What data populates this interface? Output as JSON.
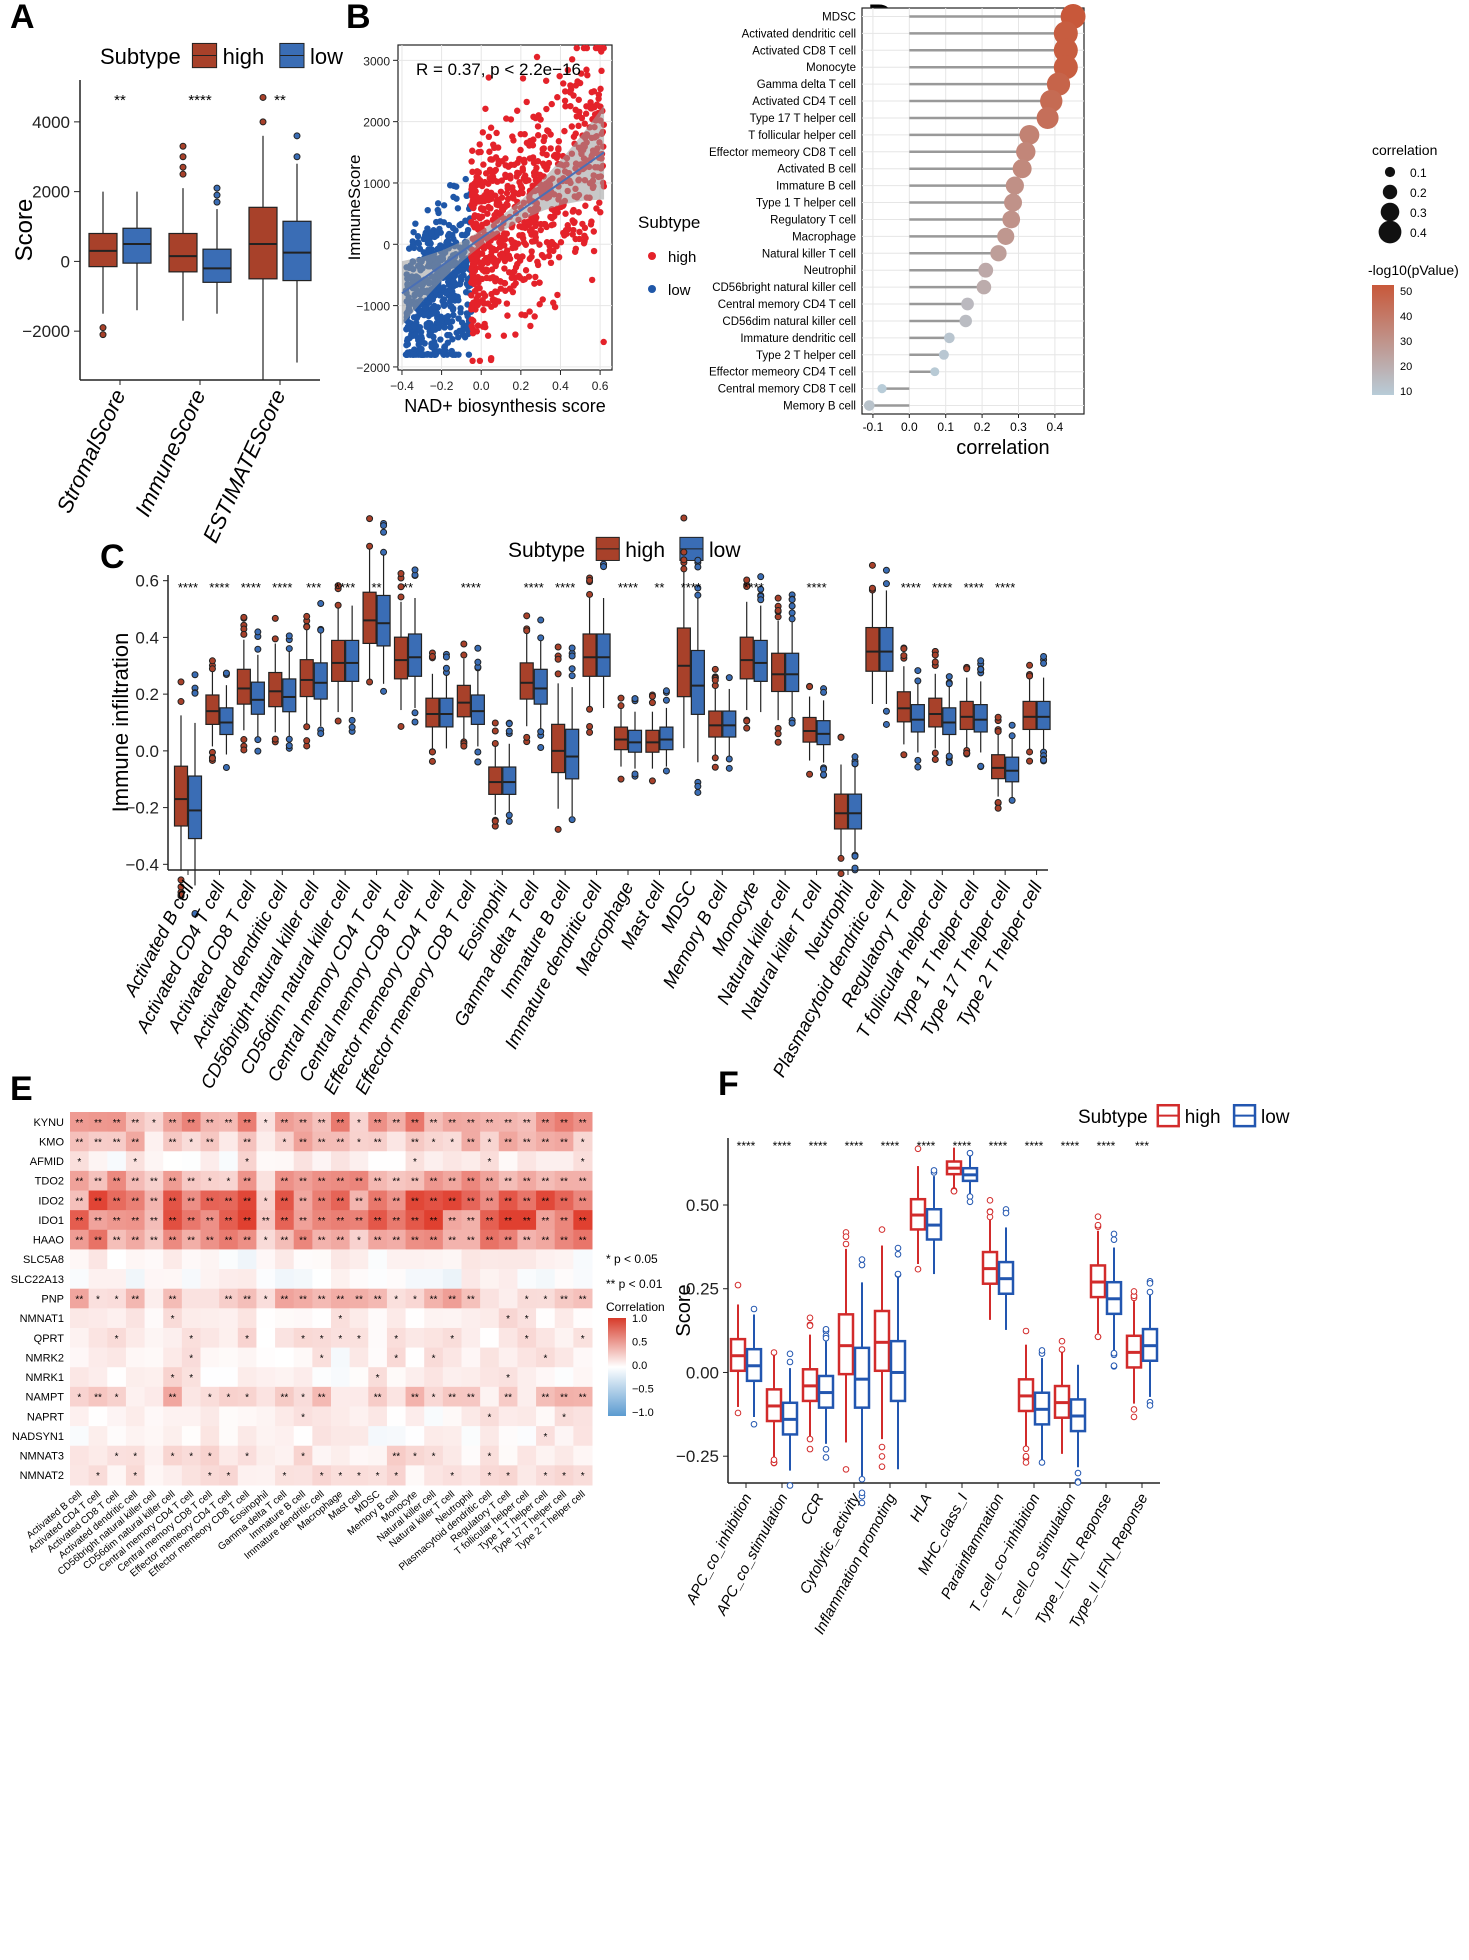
{
  "colors": {
    "high": "#a8412a",
    "low": "#3a6db5",
    "scatter_high": "#e4222a",
    "scatter_low": "#1f57a8",
    "lollipop_stem": "#999999",
    "F_high": "#d22b2b",
    "F_low": "#2256b0",
    "heat_pos": "#e04030",
    "heat_neg": "#4a8ec8"
  },
  "labels": {
    "A": "A",
    "B": "B",
    "C": "C",
    "D": "D",
    "E": "E",
    "F": "F"
  },
  "chart_data": [
    {
      "panel": "A",
      "type": "box",
      "legend_title": "Subtype",
      "legend": [
        "high",
        "low"
      ],
      "ylabel": "Score",
      "ylim": [
        -3400,
        5200
      ],
      "yticks": [
        -2000,
        0,
        2000,
        4000
      ],
      "ytick_labels": [
        "−2000",
        "0",
        "2000",
        "4000"
      ],
      "categories": [
        "StromalScore",
        "ImmuneScore",
        "ESTIMATEScore"
      ],
      "significance": [
        "**",
        "****",
        "**"
      ],
      "series": [
        {
          "name": "high",
          "boxes": [
            {
              "min": -1500,
              "q1": -150,
              "median": 300,
              "q3": 800,
              "max": 2000,
              "outliers": [
                -1900,
                -2100
              ]
            },
            {
              "min": -1700,
              "q1": -300,
              "median": 150,
              "q3": 800,
              "max": 2100,
              "outliers": [
                2500,
                2700,
                3000,
                3300
              ]
            },
            {
              "min": -3400,
              "q1": -500,
              "median": 500,
              "q3": 1550,
              "max": 3600,
              "outliers": [
                4000,
                4700
              ]
            }
          ]
        },
        {
          "name": "low",
          "boxes": [
            {
              "min": -1400,
              "q1": -50,
              "median": 500,
              "q3": 950,
              "max": 2000,
              "outliers": []
            },
            {
              "min": -1500,
              "q1": -600,
              "median": -200,
              "q3": 350,
              "max": 1500,
              "outliers": [
                1700,
                1900,
                2100
              ]
            },
            {
              "min": -2900,
              "q1": -550,
              "median": 250,
              "q3": 1150,
              "max": 2800,
              "outliers": [
                3000,
                3600
              ]
            }
          ]
        }
      ]
    },
    {
      "panel": "B",
      "type": "scatter",
      "annotation": "R = 0.37, p < 2.2e−16",
      "xlabel": "NAD+ biosynthesis score",
      "ylabel": "ImmuneScore",
      "xlim": [
        -0.42,
        0.66
      ],
      "ylim": [
        -2050,
        3250
      ],
      "xticks": [
        -0.4,
        -0.2,
        0.0,
        0.2,
        0.4,
        0.6
      ],
      "xtick_labels": [
        "−0.4",
        "−0.2",
        "0.0",
        "0.2",
        "0.4",
        "0.6"
      ],
      "yticks": [
        -2000,
        -1000,
        0,
        1000,
        2000,
        3000
      ],
      "ytick_labels": [
        "−2000",
        "−1000",
        "0",
        "1000",
        "2000",
        "3000"
      ],
      "legend_title": "Subtype",
      "legend": [
        "high",
        "low"
      ],
      "regression": {
        "x": [
          -0.4,
          0.62
        ],
        "y": [
          -800,
          1500
        ]
      },
      "high_range": {
        "x": [
          -0.05,
          0.62
        ],
        "y": [
          -1900,
          3200
        ]
      },
      "low_range": {
        "x": [
          -0.38,
          -0.05
        ],
        "y": [
          -1800,
          1900
        ]
      }
    },
    {
      "panel": "D",
      "type": "lollipop",
      "xlabel": "correlation",
      "xlim": [
        -0.13,
        0.48
      ],
      "xticks": [
        -0.1,
        0.0,
        0.1,
        0.2,
        0.3,
        0.4
      ],
      "xtick_labels": [
        "-0.1",
        "0.0",
        "0.1",
        "0.2",
        "0.3",
        "0.4"
      ],
      "size_legend_title": "correlation",
      "size_legend": [
        "0.1",
        "0.2",
        "0.3",
        "0.4"
      ],
      "color_legend_title": "-log10(pValue)",
      "color_legend": [
        "50",
        "40",
        "30",
        "20",
        "10"
      ],
      "categories": [
        "MDSC",
        "Activated dendritic cell",
        "Activated CD8 T cell",
        "Monocyte",
        "Gamma delta T cell",
        "Activated CD4 T cell",
        "Type 17 T helper cell",
        "T follicular helper cell",
        "Effector memeory CD8 T cell",
        "Activated B cell",
        "Immature B cell",
        "Type 1 T helper cell",
        "Regulatory T cell",
        "Macrophage",
        "Natural killer T cell",
        "Neutrophil",
        "CD56bright natural killer cell",
        "Central memory CD4 T cell",
        "CD56dim natural killer cell",
        "Immature dendritic cell",
        "Type 2 T helper cell",
        "Effector memeory CD4 T cell",
        "Central memory CD8 T cell",
        "Memory B cell"
      ],
      "values": [
        0.45,
        0.43,
        0.43,
        0.43,
        0.41,
        0.39,
        0.38,
        0.33,
        0.32,
        0.31,
        0.29,
        0.285,
        0.28,
        0.265,
        0.245,
        0.21,
        0.205,
        0.16,
        0.155,
        0.11,
        0.095,
        0.07,
        -0.075,
        -0.11
      ],
      "pvalue": [
        55,
        52,
        52,
        52,
        49,
        46,
        44,
        36,
        34,
        33,
        30,
        29,
        29,
        27,
        24,
        19,
        18,
        12,
        11,
        7,
        6,
        5,
        4,
        8
      ]
    },
    {
      "panel": "C",
      "type": "box",
      "legend_title": "Subtype",
      "legend": [
        "high",
        "low"
      ],
      "ylabel": "Immune infiltration",
      "ylim": [
        -0.42,
        0.62
      ],
      "yticks": [
        -0.4,
        -0.2,
        0.0,
        0.2,
        0.4,
        0.6
      ],
      "ytick_labels": [
        "−0.4",
        "−0.2",
        "0.0",
        "0.2",
        "0.4",
        "0.6"
      ],
      "categories": [
        "Activated B cell",
        "Activated CD4 T cell",
        "Activated CD8 T cell",
        "Activated dendritic cell",
        "CD56bright natural killer cell",
        "CD56dim natural killer cell",
        "Central memory CD4 T cell",
        "Central memory CD8 T cell",
        "Effector memeory CD4 T cell",
        "Effector memeory CD8 T cell",
        "Eosinophil",
        "Gamma delta T cell",
        "Immature  B cell",
        "Immature dendritic cell",
        "Macrophage",
        "Mast cell",
        "MDSC",
        "Memory B cell",
        "Monocyte",
        "Natural killer cell",
        "Natural killer T cell",
        "Neutrophil",
        "Plasmacytoid dendritic cell",
        "Regulatory T cell",
        "T follicular helper cell",
        "Type 1 T helper cell",
        "Type 17 T helper cell",
        "Type 2 T helper cell"
      ],
      "significance": [
        "****",
        "****",
        "****",
        "****",
        "***",
        "****",
        "**",
        "**",
        "",
        "****",
        "",
        "****",
        "****",
        "",
        "****",
        "**",
        "****",
        "",
        "****",
        "",
        "****",
        "",
        "",
        "****",
        "****",
        "****",
        "****",
        ""
      ],
      "high_median": [
        -0.17,
        0.14,
        0.22,
        0.21,
        0.25,
        0.31,
        0.46,
        0.32,
        0.13,
        0.17,
        -0.11,
        0.24,
        0.0,
        0.33,
        0.04,
        0.03,
        0.3,
        0.09,
        0.32,
        0.27,
        0.07,
        -0.22,
        0.35,
        0.15,
        0.13,
        0.12,
        -0.06,
        0.12
      ],
      "low_median": [
        -0.21,
        0.1,
        0.18,
        0.19,
        0.24,
        0.31,
        0.45,
        0.33,
        0.13,
        0.14,
        -0.11,
        0.22,
        -0.02,
        0.33,
        0.03,
        0.04,
        0.23,
        0.09,
        0.31,
        0.27,
        0.06,
        -0.22,
        0.35,
        0.11,
        0.1,
        0.11,
        -0.07,
        0.12
      ]
    },
    {
      "panel": "E",
      "type": "heatmap",
      "rows": [
        "KYNU",
        "KMO",
        "AFMID",
        "TDO2",
        "IDO2",
        "IDO1",
        "HAAO",
        "SLC5A8",
        "SLC22A13",
        "PNP",
        "NMNAT1",
        "QPRT",
        "NMRK2",
        "NMRK1",
        "NAMPT",
        "NAPRT",
        "NADSYN1",
        "NMNAT3",
        "NMNAT2"
      ],
      "columns": [
        "Activated B cell",
        "Activated CD4 T cell",
        "Activated CD8 T cell",
        "Activated dendritic cell",
        "CD56bright natural killer cell",
        "CD56dim natural killer cell",
        "Central memory CD4 T cell",
        "Central memory CD8 T cell",
        "Effector memeory CD4 T cell",
        "Effector memeory CD8 T cell",
        "Eosinophil",
        "Gamma delta T cell",
        "Immature  B cell",
        "Immature dendritic cell",
        "Macrophage",
        "Mast cell",
        "MDSC",
        "Memory B cell",
        "Monocyte",
        "Natural killer cell",
        "Natural killer T cell",
        "Neutrophil",
        "Plasmacytoid dendritic cell",
        "Regulatory T cell",
        "T follicular helper cell",
        "Type 1 T helper cell",
        "Type 17 T helper cell",
        "Type 2 T helper cell"
      ],
      "row_strength": [
        0.45,
        0.35,
        0.1,
        0.5,
        0.7,
        0.75,
        0.55,
        0.05,
        0.03,
        0.3,
        0.1,
        0.12,
        0.1,
        0.12,
        0.28,
        0.08,
        0.06,
        0.15,
        0.18
      ],
      "legend_notes": [
        "*   p < 0.05",
        "**  p < 0.01"
      ],
      "colorbar_title": "Correlation",
      "colorbar_ticks": [
        "1.0",
        "0.5",
        "0.0",
        "−0.5",
        "−1.0"
      ]
    },
    {
      "panel": "F",
      "type": "box",
      "legend_title": "Subtype",
      "legend": [
        "high",
        "low"
      ],
      "ylabel": "Score",
      "ylim": [
        -0.33,
        0.7
      ],
      "yticks": [
        -0.25,
        0.0,
        0.25,
        0.5
      ],
      "ytick_labels": [
        "−0.25",
        "0.00",
        "0.25",
        "0.50"
      ],
      "categories": [
        "APC_co_inhibition",
        "APC_co_stimulation",
        "CCR",
        "Cytolytic_activity",
        "Inflammation promoting",
        "HLA",
        "MHC_class_I",
        "Parainflammation",
        "T_cell_co−inhibition",
        "T_cell_co stimulation",
        "Type_I_IFN_Reponse",
        "Type_II_IFN_Reponse"
      ],
      "significance": [
        "****",
        "****",
        "****",
        "****",
        "****",
        "****",
        "****",
        "****",
        "****",
        "****",
        "****",
        "***"
      ],
      "high_median": [
        0.05,
        -0.1,
        -0.04,
        0.08,
        0.09,
        0.47,
        0.61,
        0.31,
        -0.07,
        -0.09,
        0.27,
        0.06
      ],
      "low_median": [
        0.02,
        -0.14,
        -0.06,
        -0.02,
        0.0,
        0.44,
        0.59,
        0.28,
        -0.11,
        -0.13,
        0.22,
        0.08
      ]
    }
  ]
}
